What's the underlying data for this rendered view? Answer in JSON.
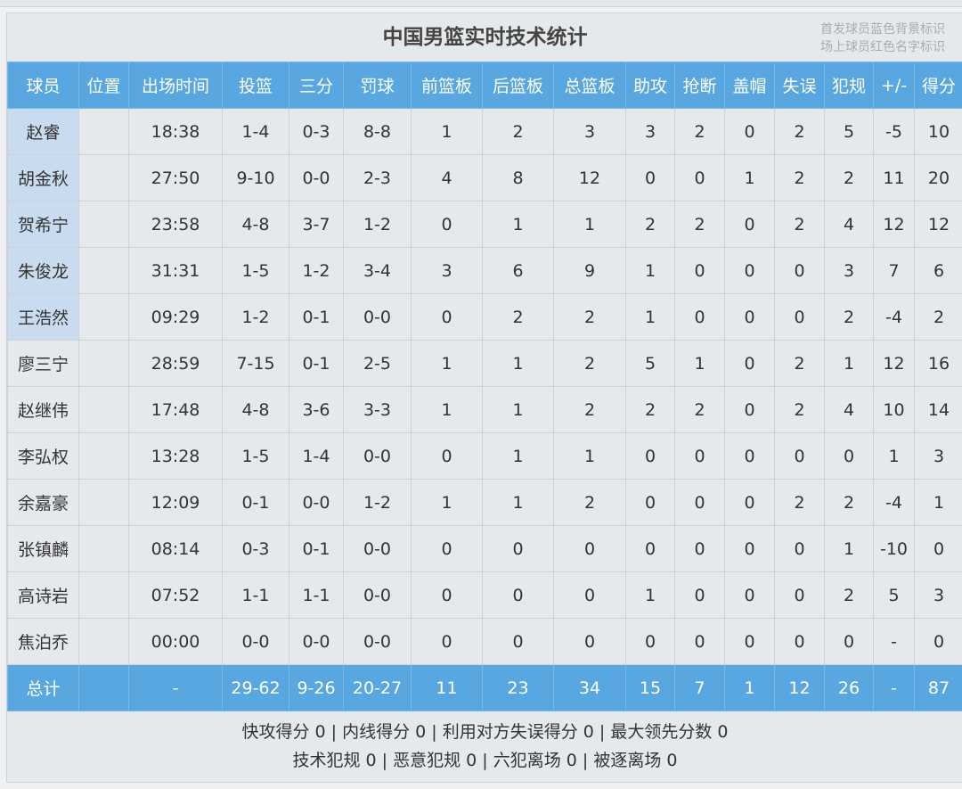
{
  "title": "中国男篮实时技术统计",
  "legend": [
    "首发球员蓝色背景标识",
    "场上球员红色名字标识"
  ],
  "colors": {
    "header_bg": "#58a7e1",
    "starter_bg": "#c9dcef",
    "on_court_name": "#e02020"
  },
  "columns": [
    "球员",
    "位置",
    "出场时间",
    "投篮",
    "三分",
    "罚球",
    "前篮板",
    "后篮板",
    "总篮板",
    "助攻",
    "抢断",
    "盖帽",
    "失误",
    "犯规",
    "+/-",
    "得分"
  ],
  "players": [
    {
      "starter": true,
      "cells": [
        "赵睿",
        "",
        "18:38",
        "1-4",
        "0-3",
        "8-8",
        "1",
        "2",
        "3",
        "3",
        "2",
        "0",
        "2",
        "5",
        "-5",
        "10"
      ]
    },
    {
      "starter": true,
      "cells": [
        "胡金秋",
        "",
        "27:50",
        "9-10",
        "0-0",
        "2-3",
        "4",
        "8",
        "12",
        "0",
        "0",
        "1",
        "2",
        "2",
        "11",
        "20"
      ]
    },
    {
      "starter": true,
      "cells": [
        "贺希宁",
        "",
        "23:58",
        "4-8",
        "3-7",
        "1-2",
        "0",
        "1",
        "1",
        "2",
        "2",
        "0",
        "2",
        "4",
        "12",
        "12"
      ]
    },
    {
      "starter": true,
      "cells": [
        "朱俊龙",
        "",
        "31:31",
        "1-5",
        "1-2",
        "3-4",
        "3",
        "6",
        "9",
        "1",
        "0",
        "0",
        "0",
        "3",
        "7",
        "6"
      ]
    },
    {
      "starter": true,
      "cells": [
        "王浩然",
        "",
        "09:29",
        "1-2",
        "0-1",
        "0-0",
        "0",
        "2",
        "2",
        "1",
        "0",
        "0",
        "0",
        "2",
        "-4",
        "2"
      ]
    },
    {
      "starter": false,
      "cells": [
        "廖三宁",
        "",
        "28:59",
        "7-15",
        "0-1",
        "2-5",
        "1",
        "1",
        "2",
        "5",
        "1",
        "0",
        "2",
        "1",
        "12",
        "16"
      ]
    },
    {
      "starter": false,
      "cells": [
        "赵继伟",
        "",
        "17:48",
        "4-8",
        "3-6",
        "3-3",
        "1",
        "1",
        "2",
        "2",
        "2",
        "0",
        "2",
        "4",
        "10",
        "14"
      ]
    },
    {
      "starter": false,
      "cells": [
        "李弘权",
        "",
        "13:28",
        "1-5",
        "1-4",
        "0-0",
        "0",
        "1",
        "1",
        "0",
        "0",
        "0",
        "0",
        "0",
        "1",
        "3"
      ]
    },
    {
      "starter": false,
      "cells": [
        "余嘉豪",
        "",
        "12:09",
        "0-1",
        "0-0",
        "1-2",
        "1",
        "1",
        "2",
        "0",
        "0",
        "0",
        "2",
        "2",
        "-4",
        "1"
      ]
    },
    {
      "starter": false,
      "cells": [
        "张镇麟",
        "",
        "08:14",
        "0-3",
        "0-1",
        "0-0",
        "0",
        "0",
        "0",
        "0",
        "0",
        "0",
        "0",
        "1",
        "-10",
        "0"
      ]
    },
    {
      "starter": false,
      "cells": [
        "高诗岩",
        "",
        "07:52",
        "1-1",
        "1-1",
        "0-0",
        "0",
        "0",
        "0",
        "1",
        "0",
        "0",
        "0",
        "2",
        "5",
        "3"
      ]
    },
    {
      "starter": false,
      "cells": [
        "焦泊乔",
        "",
        "00:00",
        "0-0",
        "0-0",
        "0-0",
        "0",
        "0",
        "0",
        "0",
        "0",
        "0",
        "0",
        "0",
        "-",
        "0"
      ]
    }
  ],
  "total": [
    "总计",
    "",
    "-",
    "29-62",
    "9-26",
    "20-27",
    "11",
    "23",
    "34",
    "15",
    "7",
    "1",
    "12",
    "26",
    "-",
    "87"
  ],
  "footer": [
    "快攻得分 0 | 内线得分 0 | 利用对方失误得分 0 | 最大领先分数 0",
    "技术犯规 0 | 恶意犯规 0 | 六犯离场 0 | 被逐离场 0"
  ]
}
